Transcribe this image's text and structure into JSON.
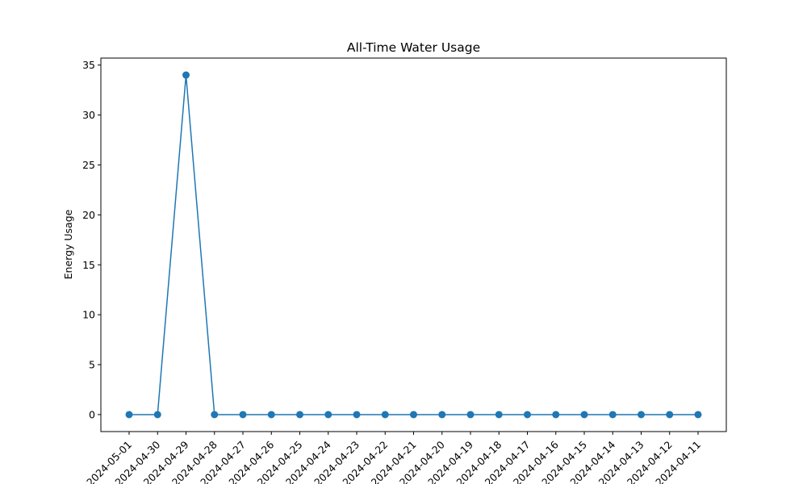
{
  "colors": {
    "series": "#1f77b4",
    "axis": "#000000",
    "background": "#ffffff"
  },
  "chart_data": {
    "type": "line",
    "title": "All-Time Water Usage",
    "xlabel": "",
    "ylabel": "Energy Usage",
    "x": [
      "2024-05-01",
      "2024-04-30",
      "2024-04-29",
      "2024-04-28",
      "2024-04-27",
      "2024-04-26",
      "2024-04-25",
      "2024-04-24",
      "2024-04-23",
      "2024-04-22",
      "2024-04-21",
      "2024-04-20",
      "2024-04-19",
      "2024-04-18",
      "2024-04-17",
      "2024-04-16",
      "2024-04-15",
      "2024-04-14",
      "2024-04-13",
      "2024-04-12",
      "2024-04-11"
    ],
    "series": [
      {
        "values": [
          0,
          0,
          34,
          0,
          0,
          0,
          0,
          0,
          0,
          0,
          0,
          0,
          0,
          0,
          0,
          0,
          0,
          0,
          0,
          0,
          0
        ],
        "marker": "circle"
      }
    ],
    "ylim": [
      -1.7,
      35.7
    ],
    "yticks": [
      0,
      5,
      10,
      15,
      20,
      25,
      30,
      35
    ],
    "grid": false,
    "legend": "none"
  }
}
